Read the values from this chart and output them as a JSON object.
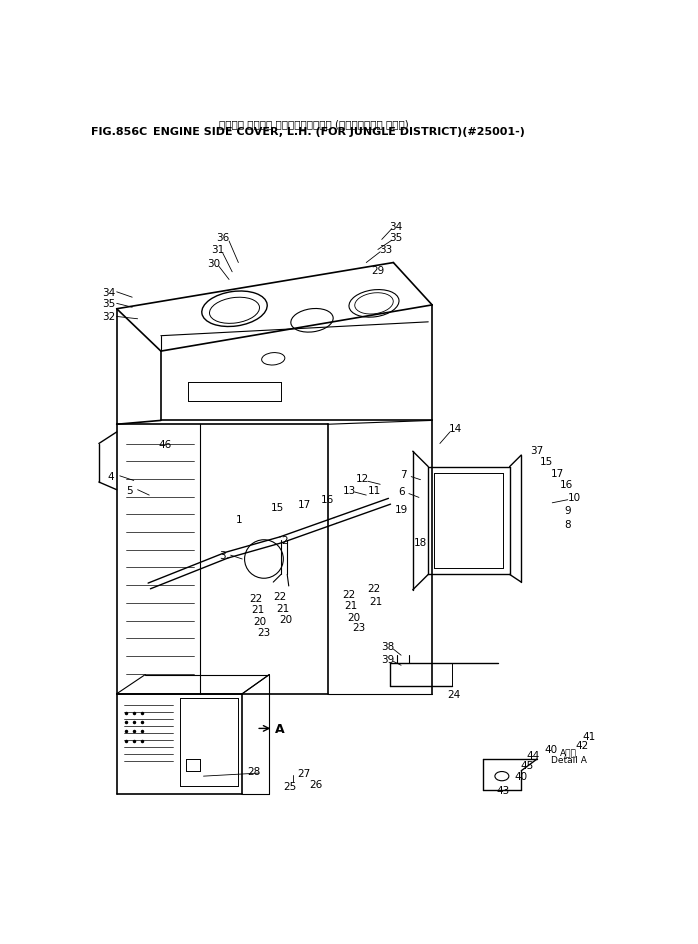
{
  "title_japanese": "エンジン サイト゚ カパー， ヒタ゚リ (シ゚ャンク゚ル ショウ)",
  "title_english": "ENGINE SIDE COVER, L.H. (FOR JUNGLE DISTRICT)(#25001-)",
  "fig_number": "FIG.856C",
  "bg": "#ffffff",
  "lc": "#000000"
}
